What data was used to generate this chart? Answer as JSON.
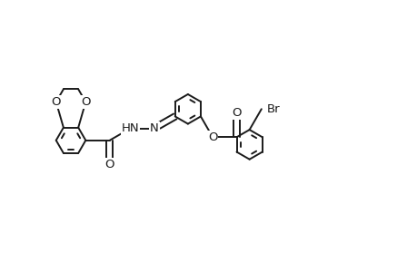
{
  "bg_color": "#ffffff",
  "line_color": "#1a1a1a",
  "line_width": 1.4,
  "figsize": [
    4.6,
    3.0
  ],
  "dpi": 100,
  "xlim": [
    0,
    9.5
  ],
  "ylim": [
    0,
    6.2
  ]
}
